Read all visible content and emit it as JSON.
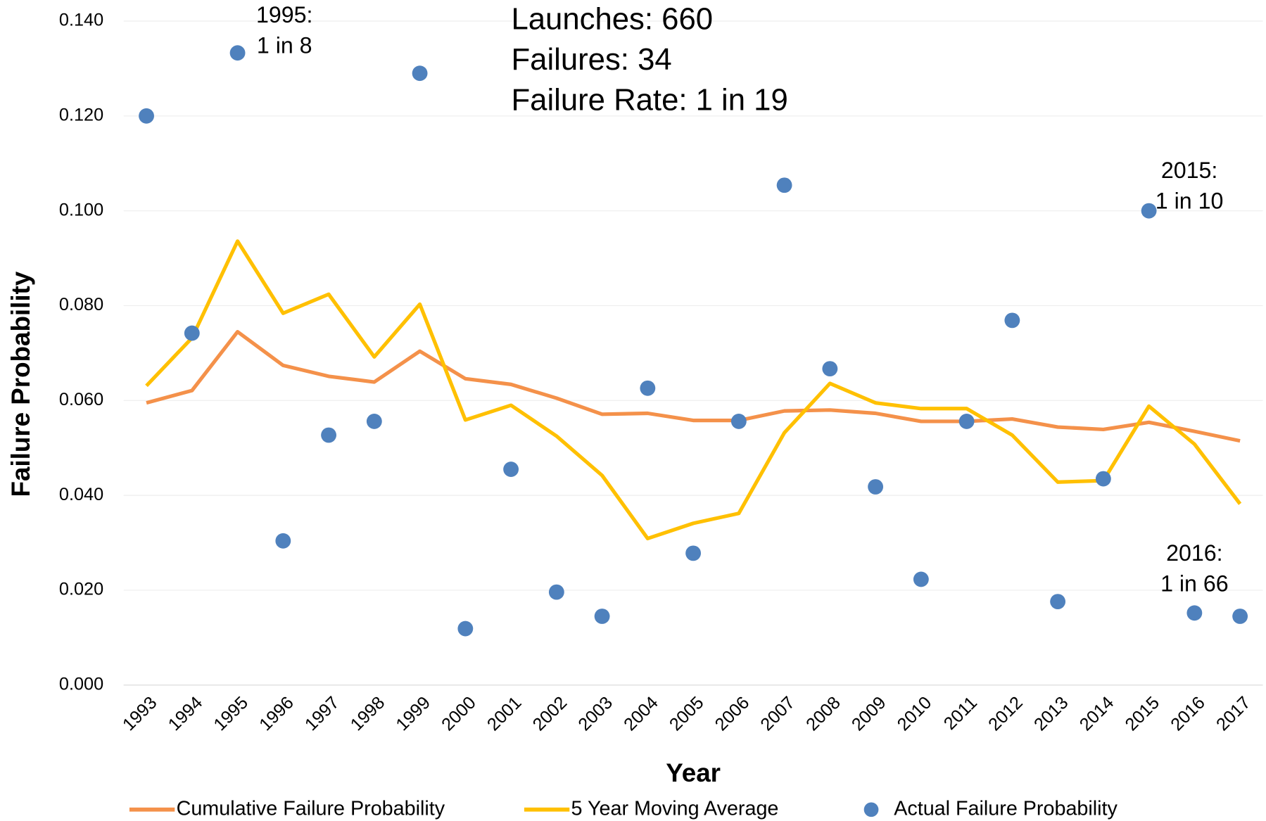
{
  "chart_data": {
    "type": "line",
    "x_label": "Year",
    "y_label": "Failure Probability",
    "categories": [
      "1993",
      "1994",
      "1995",
      "1996",
      "1997",
      "1998",
      "1999",
      "2000",
      "2001",
      "2002",
      "2003",
      "2004",
      "2005",
      "2006",
      "2007",
      "2008",
      "2009",
      "2010",
      "2011",
      "2012",
      "2013",
      "2014",
      "2015",
      "2016",
      "2017"
    ],
    "series": [
      {
        "name": "Cumulative Failure Probability",
        "type": "line",
        "color": "#f4914a",
        "values": [
          0.0595,
          0.0621,
          0.0745,
          0.0674,
          0.0651,
          0.0639,
          0.0704,
          0.0646,
          0.0634,
          0.0605,
          0.0571,
          0.0573,
          0.0558,
          0.0558,
          0.0578,
          0.058,
          0.0573,
          0.0556,
          0.0556,
          0.0561,
          0.0544,
          0.0539,
          0.0554,
          0.0535,
          0.0515
        ]
      },
      {
        "name": "5 Year Moving Average",
        "type": "line",
        "color": "#ffc000",
        "values": [
          0.0631,
          0.0732,
          0.0936,
          0.0784,
          0.0824,
          0.0692,
          0.0803,
          0.0559,
          0.059,
          0.0525,
          0.0442,
          0.0309,
          0.0341,
          0.0362,
          0.0532,
          0.0636,
          0.0595,
          0.0583,
          0.0583,
          0.0527,
          0.0428,
          0.0431,
          0.0588,
          0.0508,
          0.0382
        ]
      },
      {
        "name": "Actual Failure Probability",
        "type": "scatter",
        "color": "#4f81bd",
        "values": [
          0.12,
          0.0742,
          0.1333,
          0.0304,
          0.0527,
          0.0556,
          0.129,
          0.0119,
          0.0455,
          0.0196,
          0.0145,
          0.0626,
          0.0278,
          0.0556,
          0.1054,
          0.0667,
          0.0418,
          0.0223,
          0.0556,
          0.0769,
          0.0176,
          0.0435,
          0.1,
          0.0152,
          0.0145
        ]
      }
    ],
    "ylim": [
      0,
      0.14
    ],
    "yticks": [
      {
        "value": 0,
        "label": "0.000"
      },
      {
        "value": 0.02,
        "label": "0.020"
      },
      {
        "value": 0.04,
        "label": "0.040"
      },
      {
        "value": 0.06,
        "label": "0.060"
      },
      {
        "value": 0.08,
        "label": "0.080"
      },
      {
        "value": 0.1,
        "label": "0.100"
      },
      {
        "value": 0.12,
        "label": "0.120"
      },
      {
        "value": 0.14,
        "label": "0.140"
      }
    ],
    "grid": true,
    "legend": "bottom",
    "summary": [
      "Launches: 660",
      "Failures: 34",
      "Failure Rate: 1 in 19"
    ],
    "annotations": [
      {
        "at": "1995",
        "lines": [
          "1995:",
          "1 in 8"
        ]
      },
      {
        "at": "2015",
        "lines": [
          "2015:",
          "1 in 10"
        ]
      },
      {
        "at": "2016",
        "lines": [
          "2016:",
          "1 in 66"
        ]
      }
    ]
  }
}
